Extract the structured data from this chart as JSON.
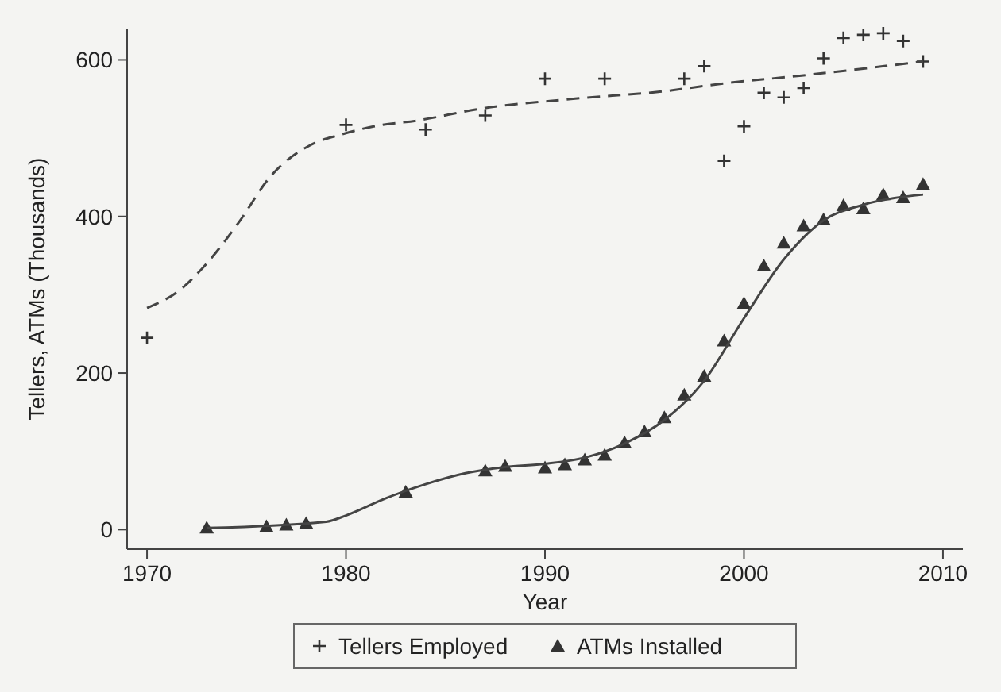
{
  "chart_data": {
    "type": "scatter",
    "xlabel": "Year",
    "ylabel": "Tellers, ATMs (Thousands)",
    "xlim": [
      1969,
      2011
    ],
    "ylim": [
      -25,
      640
    ],
    "xticks": [
      1970,
      1980,
      1990,
      2000,
      2010
    ],
    "yticks": [
      0,
      200,
      400,
      600
    ],
    "grid": false,
    "legend": "bottom",
    "series": [
      {
        "name": "Tellers Employed",
        "marker": "cross",
        "color": "#333333",
        "x": [
          1970,
          1980,
          1984,
          1987,
          1990,
          1993,
          1997,
          1998,
          1999,
          2000,
          2001,
          2002,
          2003,
          2004,
          2005,
          2006,
          2007,
          2008,
          2009
        ],
        "values": [
          245,
          517,
          511,
          529,
          576,
          576,
          576,
          592,
          471,
          515,
          558,
          552,
          564,
          602,
          628,
          632,
          634,
          624,
          598
        ]
      },
      {
        "name": "ATMs Installed",
        "marker": "triangle",
        "color": "#333333",
        "x": [
          1973,
          1976,
          1977,
          1978,
          1983,
          1987,
          1988,
          1990,
          1991,
          1992,
          1993,
          1994,
          1995,
          1996,
          1997,
          1998,
          1999,
          2000,
          2001,
          2002,
          2003,
          2004,
          2005,
          2006,
          2007,
          2008,
          2009
        ],
        "values": [
          2,
          4,
          6,
          8,
          48,
          75,
          81,
          79,
          83,
          89,
          95,
          111,
          125,
          143,
          172,
          196,
          241,
          289,
          337,
          366,
          388,
          396,
          414,
          410,
          428,
          424,
          441
        ]
      },
      {
        "type": "line",
        "line_style": "dashed",
        "marker": "none",
        "color": "#444444",
        "x": [
          1970,
          1971.7,
          1973,
          1974.6,
          1976.2,
          1978.2,
          1979.8,
          1981.4,
          1983.7,
          1986.6,
          1991.3,
          1996,
          1999,
          2002.9,
          2009
        ],
        "values": [
          283,
          307,
          340,
          392,
          451,
          491,
          505,
          515,
          523,
          537,
          550,
          560,
          570,
          580,
          598
        ]
      },
      {
        "type": "line",
        "line_style": "solid",
        "marker": "none",
        "color": "#444444",
        "x": [
          1973,
          1979,
          1980,
          1982,
          1984,
          1986,
          1988,
          1990,
          1992,
          1994,
          1996,
          1998,
          2000,
          2002,
          2004,
          2006,
          2009
        ],
        "values": [
          2,
          10,
          18,
          40,
          58,
          72,
          80,
          84,
          92,
          110,
          140,
          190,
          270,
          345,
          395,
          415,
          428
        ]
      }
    ]
  }
}
